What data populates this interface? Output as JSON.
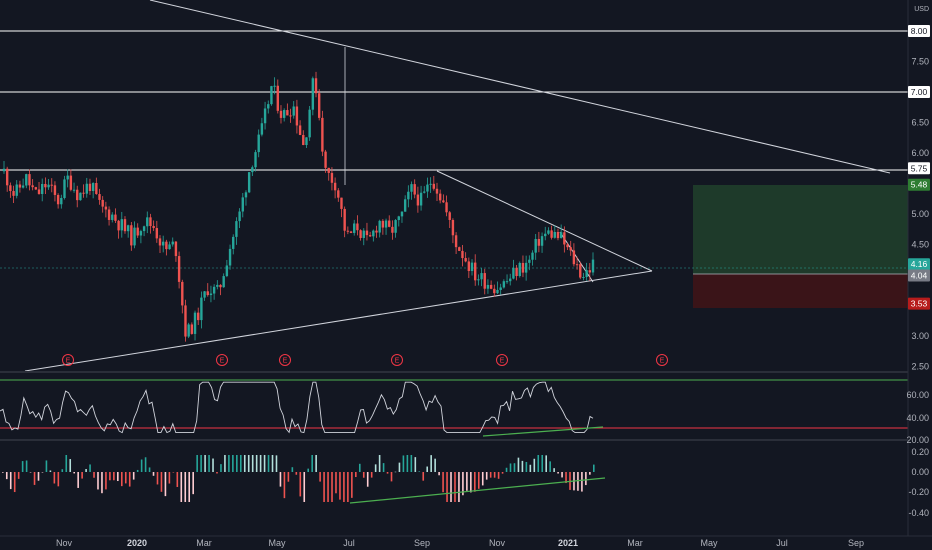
{
  "currency": "USD",
  "colors": {
    "background": "#131722",
    "candle_up": "#26a69a",
    "candle_down": "#ef5350",
    "rsi_line": "#d1d4dc",
    "rsi_upper": "#4caf50",
    "rsi_lower": "#f23645",
    "divergence": "#4caf50",
    "target_zone": "#1e3a2a",
    "stop_zone": "#3a1418"
  },
  "chart_data": {
    "type": "candlestick",
    "price_axis": {
      "ticks": [
        "8.00",
        "7.50",
        "7.00",
        "6.50",
        "6.00",
        "5.75",
        "5.48",
        "5.00",
        "4.50",
        "4.16",
        "4.04",
        "3.53",
        "3.00",
        "2.50"
      ],
      "range": [
        2.5,
        8.3
      ]
    },
    "price_tags": [
      {
        "label": "8.00",
        "value": 8.0,
        "kind": "level"
      },
      {
        "label": "7.00",
        "value": 7.0,
        "kind": "level"
      },
      {
        "label": "5.75",
        "value": 5.75,
        "kind": "level"
      },
      {
        "label": "5.48",
        "value": 5.48,
        "kind": "target"
      },
      {
        "label": "4.16",
        "value": 4.16,
        "kind": "last"
      },
      {
        "label": "4.04",
        "value": 4.04,
        "kind": "entry"
      },
      {
        "label": "3.53",
        "value": 3.53,
        "kind": "stop"
      }
    ],
    "horizontal_levels": [
      8.0,
      7.0,
      5.75
    ],
    "time_axis": [
      "Nov",
      "2020",
      "Mar",
      "May",
      "Jul",
      "Sep",
      "Nov",
      "2021",
      "Mar",
      "May",
      "Jul",
      "Sep"
    ],
    "earnings_marker": "E",
    "earnings_count": 6,
    "price_path": [
      5.7,
      5.3,
      5.6,
      5.3,
      5.5,
      5.2,
      5.6,
      5.3,
      5.5,
      5.1,
      5.0,
      4.8,
      4.6,
      4.9,
      4.8,
      4.4,
      4.5,
      3.0,
      3.3,
      3.8,
      3.7,
      4.4,
      5.0,
      5.8,
      6.3,
      7.1,
      6.6,
      6.8,
      6.1,
      7.3,
      5.7,
      5.5,
      4.6,
      4.8,
      4.5,
      4.9,
      4.7,
      4.9,
      5.4,
      5.2,
      5.6,
      5.2,
      4.6,
      4.3,
      4.0,
      3.9,
      3.8,
      3.9,
      4.1,
      4.2,
      4.6,
      4.7,
      4.6,
      4.3,
      4.0,
      4.16
    ],
    "rsi": {
      "axis_ticks": [
        "60.00",
        "40.00",
        "20.00"
      ],
      "upper_level": 70,
      "lower_level": 30
    },
    "macd_histogram": {
      "axis_ticks": [
        "0.20",
        "0.00",
        "-0.20",
        "-0.40"
      ]
    }
  }
}
